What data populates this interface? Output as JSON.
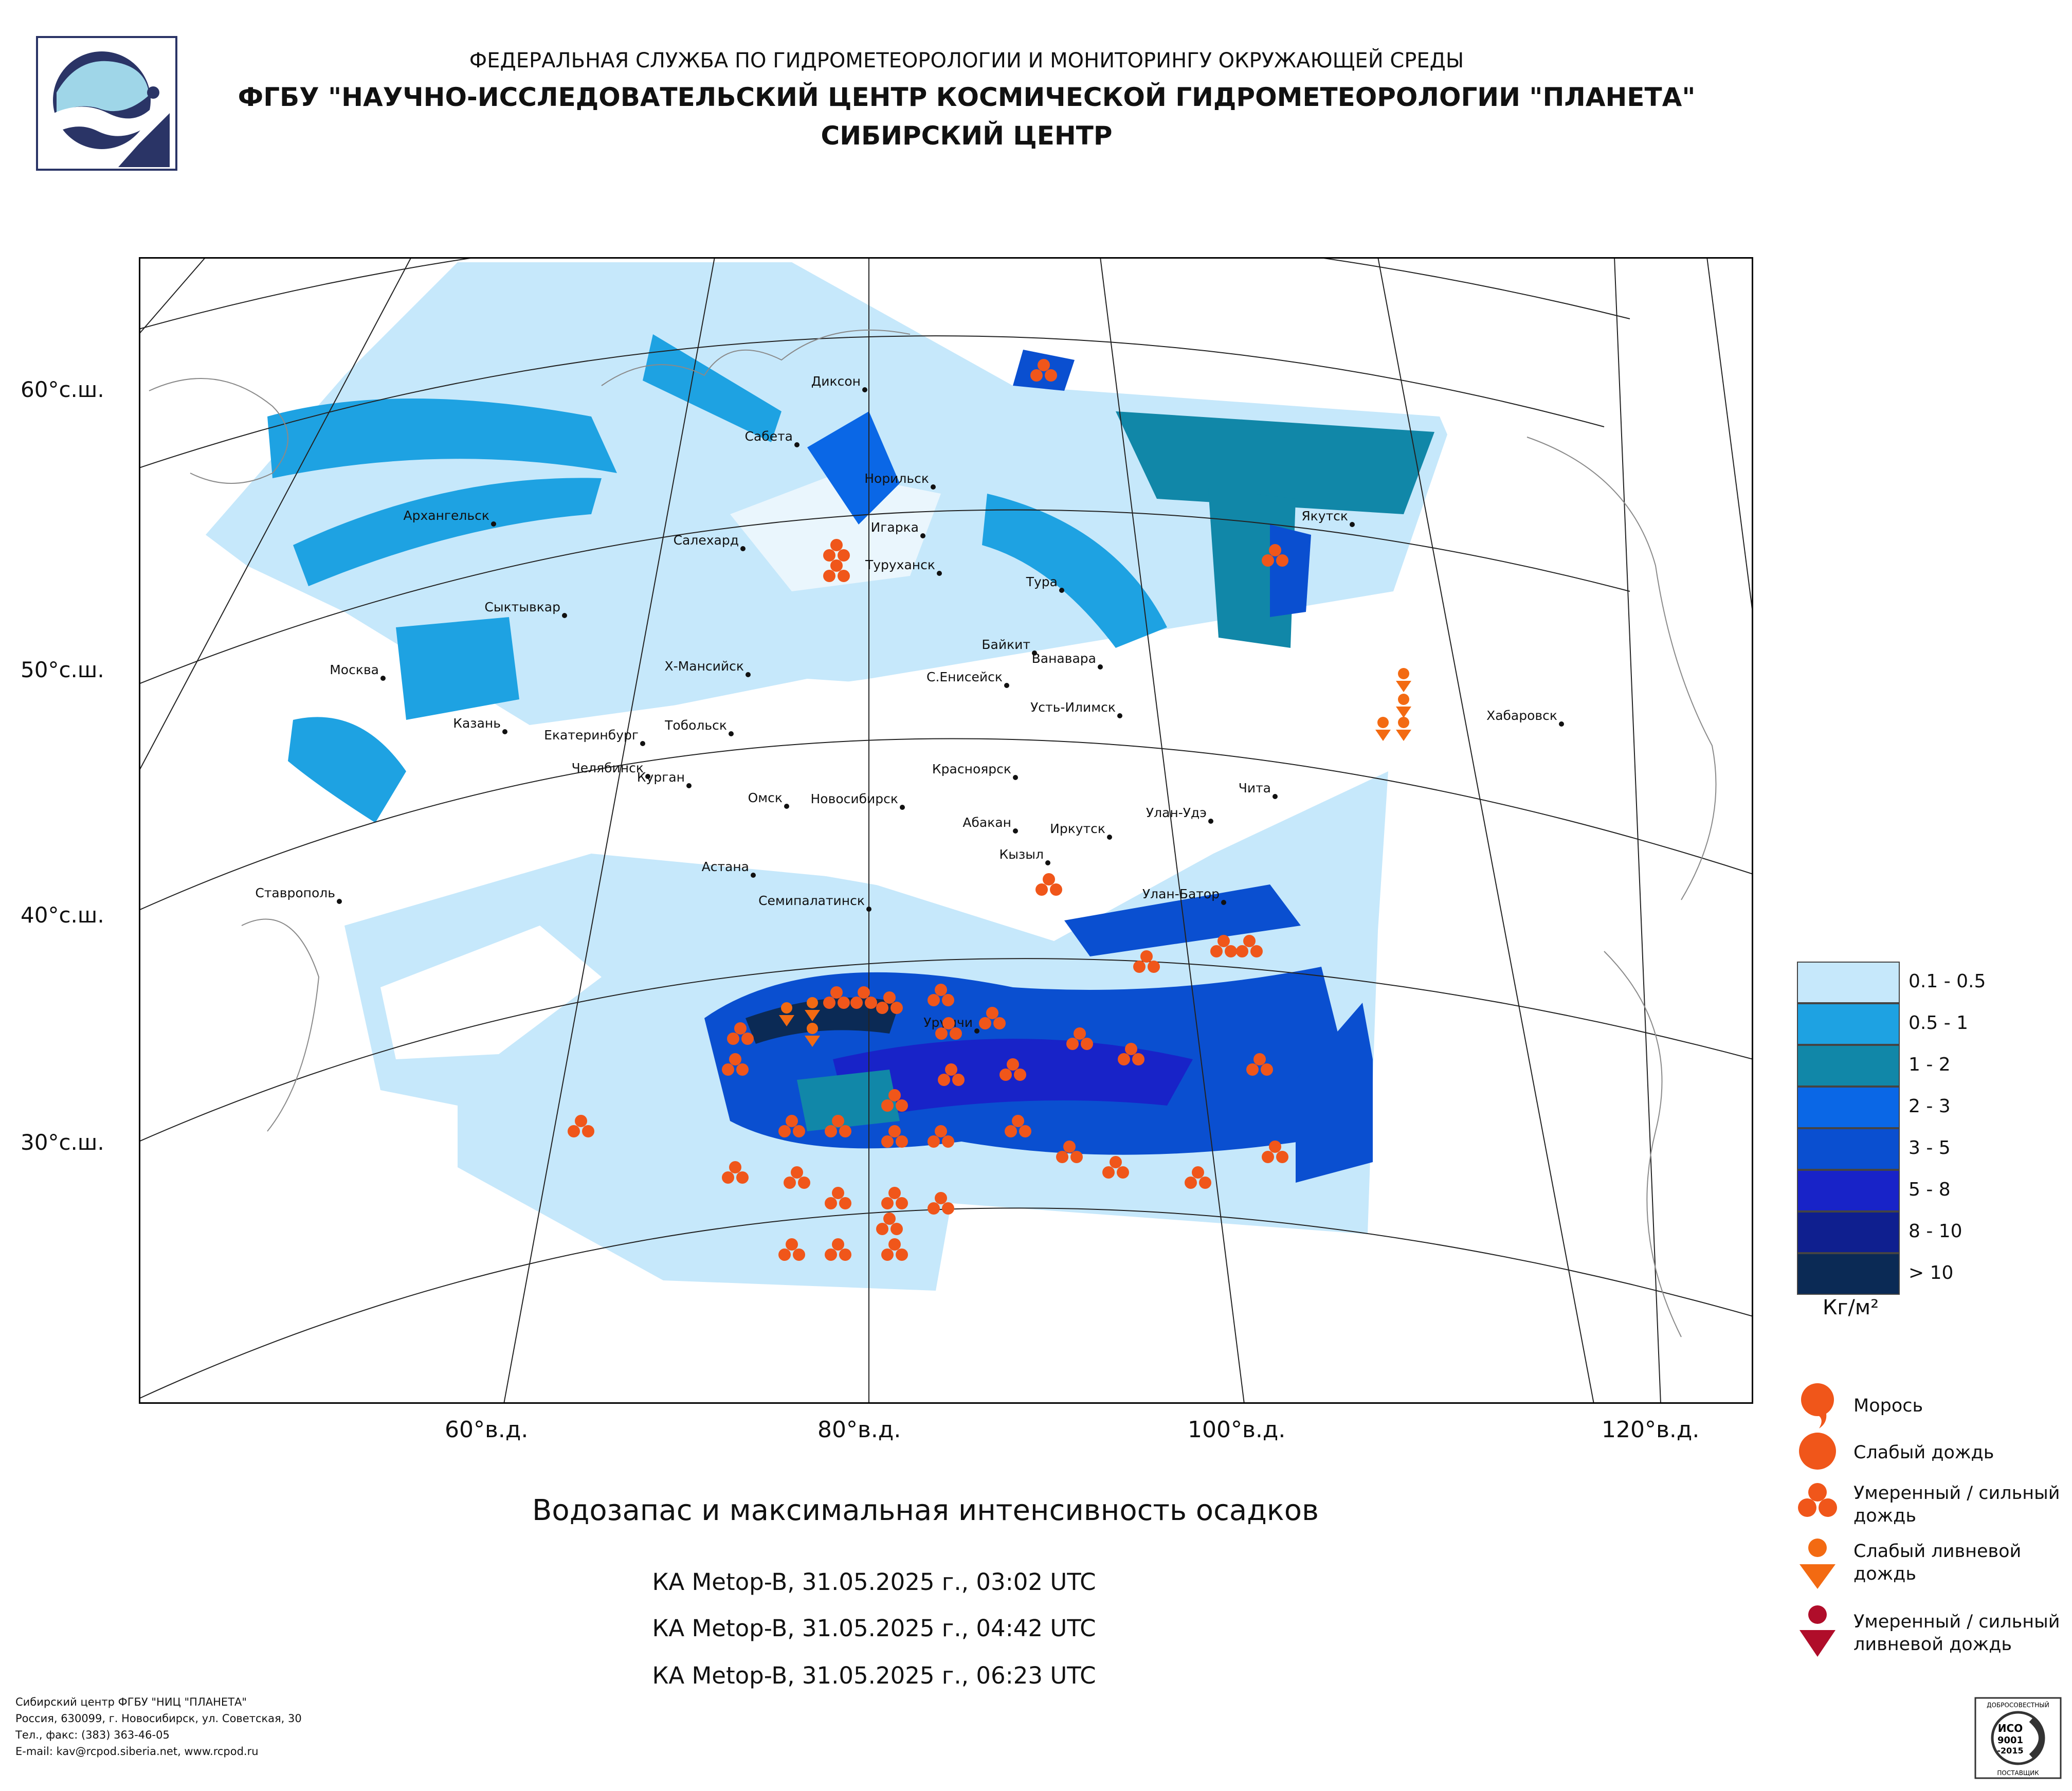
{
  "header": {
    "line1": "ФЕДЕРАЛЬНАЯ СЛУЖБА ПО ГИДРОМЕТЕОРОЛОГИИ И МОНИТОРИНГУ ОКРУЖАЮЩЕЙ СРЕДЫ",
    "line2": "ФГБУ \"НАУЧНО-ИССЛЕДОВАТЕЛЬСКИЙ ЦЕНТР КОСМИЧЕСКОЙ ГИДРОМЕТЕОРОЛОГИИ \"ПЛАНЕТА\"",
    "line3": "СИБИРСКИЙ ЦЕНТР"
  },
  "map": {
    "lat_labels": [
      "60°с.ш.",
      "50°с.ш.",
      "40°с.ш.",
      "30°с.ш."
    ],
    "lon_labels": [
      "60°в.д.",
      "80°в.д.",
      "100°в.д.",
      "120°в.д."
    ],
    "cities": [
      "Диксон",
      "Сабета",
      "Норильск",
      "Игарка",
      "Архангельск",
      "Салехард",
      "Туруханск",
      "Тура",
      "Якутск",
      "Сыктывкар",
      "Байкит",
      "Ванавара",
      "Москва",
      "Х-Мансийск",
      "С.Енисейск",
      "Усть-Илимск",
      "Хабаровск",
      "Казань",
      "Екатеринбург",
      "Тобольск",
      "Челябинск",
      "Курган",
      "Красноярск",
      "Чита",
      "Омск",
      "Новосибирск",
      "Абакан",
      "Улан-Удэ",
      "Иркутск",
      "Астана",
      "Кызыл",
      "Ставрополь",
      "Семипалатинск",
      "Улан-Батор",
      "Урумчи"
    ]
  },
  "legend": {
    "ranges": [
      {
        "label": "0.1 - 0.5",
        "color": "#c6e8fb"
      },
      {
        "label": "0.5 - 1",
        "color": "#1ea2e2"
      },
      {
        "label": "1 - 2",
        "color": "#1187a8"
      },
      {
        "label": "2 - 3",
        "color": "#0a67e6"
      },
      {
        "label": "3 - 5",
        "color": "#0a4fd0"
      },
      {
        "label": "5 - 8",
        "color": "#1823c8"
      },
      {
        "label": "8 - 10",
        "color": "#0f1f8f"
      },
      {
        "label": "> 10",
        "color": "#0b2a55"
      }
    ],
    "unit": "Кг/м²"
  },
  "symbols": {
    "drizzle": "Морось",
    "light_rain": "Слабый дождь",
    "moderate_rain": "Умеренный / сильный дождь",
    "light_shower": "Слабый ливневой дождь",
    "moderate_shower": "Умеренный / сильный ливневой дождь",
    "colors": {
      "rain": "#f0561a",
      "shower": "#f36a12",
      "heavy_shower": "#b00d2a"
    }
  },
  "title": "Водозапас и максимальная интенсивность осадков",
  "satellite_passes": [
    "КА Metop-B, 31.05.2025 г., 03:02 UTC",
    "КА Metop-B, 31.05.2025 г., 04:42 UTC",
    "КА Metop-B, 31.05.2025 г., 06:23 UTC"
  ],
  "footer": {
    "org": "Сибирский центр ФГБУ \"НИЦ \"ПЛАНЕТА\"",
    "address": "Россия, 630099, г. Новосибирск, ул. Советская, 30",
    "phone": "Тел., факс: (383) 363-46-05",
    "contacts": "E-mail: kav@rcpod.siberia.net, www.rcpod.ru"
  },
  "iso_badge": {
    "top": "ДОБРОСОВЕСТНЫЙ",
    "line1": "ИСО",
    "line2": "9001",
    "line3": "-2015",
    "bottom": "ПОСТАВЩИК"
  }
}
